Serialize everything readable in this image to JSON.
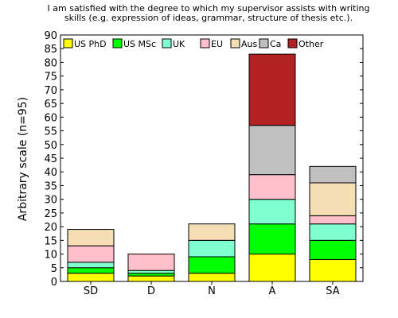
{
  "chart_data": {
    "type": "bar",
    "stacked": true,
    "title": [
      "I am satisfied with the degree to which my supervisor assists with writing",
      "skills (e.g. expression of ideas, grammar, structure of thesis etc.)."
    ],
    "xlabel": "",
    "ylabel": "Arbitrary scale (n=95)",
    "ylim": [
      0,
      90
    ],
    "yticks": [
      0,
      5,
      10,
      15,
      20,
      25,
      30,
      35,
      40,
      45,
      50,
      55,
      60,
      65,
      70,
      75,
      80,
      85,
      90
    ],
    "grid": false,
    "legend_position": "top",
    "categories": [
      "SD",
      "D",
      "N",
      "A",
      "SA"
    ],
    "series": [
      {
        "name": "US PhD",
        "color": "#ffff00",
        "values": [
          3,
          2,
          3,
          10,
          8
        ]
      },
      {
        "name": "US MSc",
        "color": "#00ff00",
        "values": [
          2,
          1,
          6,
          11,
          7
        ]
      },
      {
        "name": "UK",
        "color": "#80ffd0",
        "values": [
          2,
          1,
          6,
          9,
          6
        ]
      },
      {
        "name": "EU",
        "color": "#ffc0cb",
        "values": [
          6,
          6,
          0,
          9,
          3
        ]
      },
      {
        "name": "Aus",
        "color": "#f5deb3",
        "values": [
          6,
          0,
          6,
          0,
          12
        ]
      },
      {
        "name": "Ca",
        "color": "#c0c0c0",
        "values": [
          0,
          0,
          0,
          18,
          6
        ]
      },
      {
        "name": "Other",
        "color": "#b22222",
        "values": [
          0,
          0,
          0,
          26,
          0
        ]
      }
    ]
  }
}
